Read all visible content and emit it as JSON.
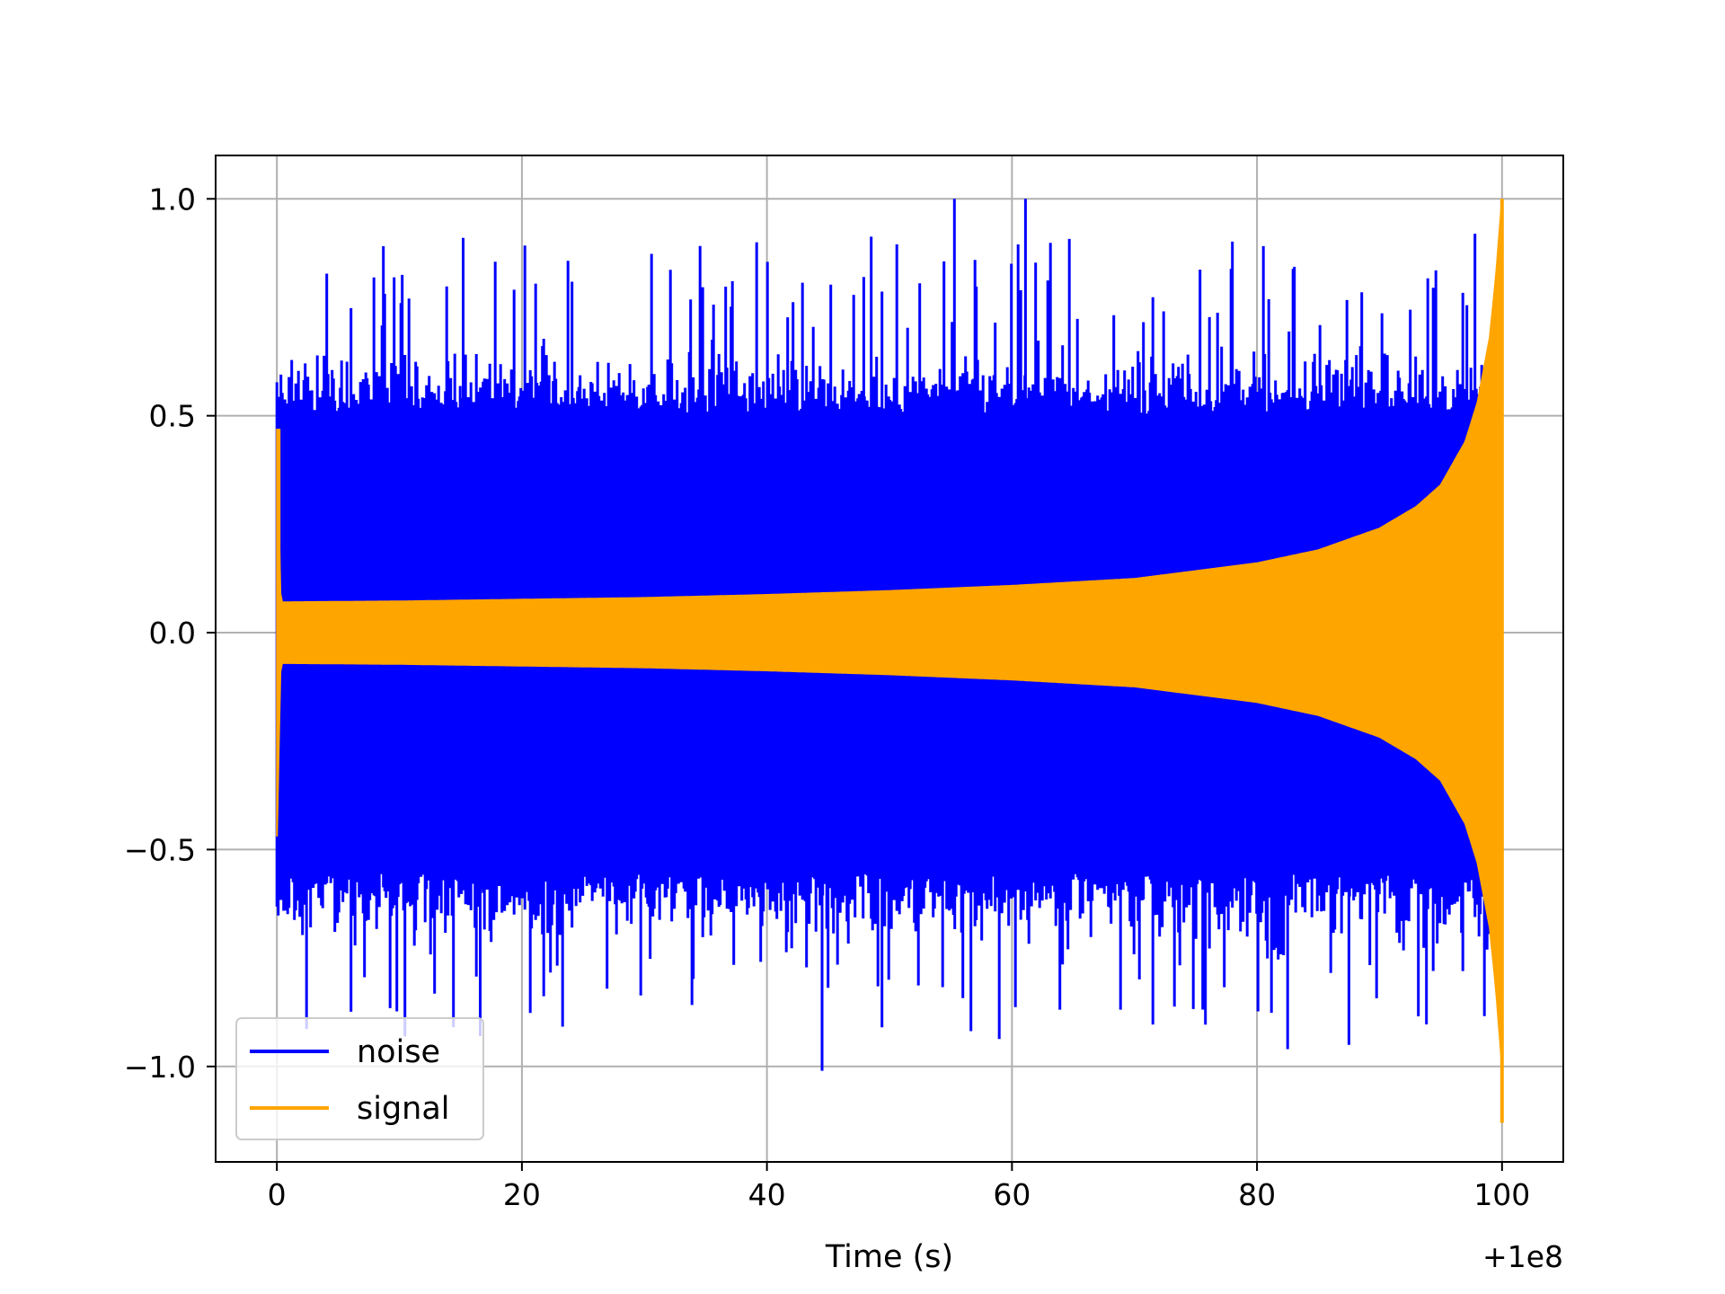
{
  "chart_data": {
    "type": "line",
    "title": "",
    "xlabel": "Time (s)",
    "ylabel": "",
    "x_offset_label": "+1e8",
    "xlim": [
      -5,
      105
    ],
    "ylim": [
      -1.22,
      1.1
    ],
    "x_ticks": [
      0,
      20,
      40,
      60,
      80,
      100
    ],
    "x_tick_labels": [
      "0",
      "20",
      "40",
      "60",
      "80",
      "100"
    ],
    "y_ticks": [
      1.0,
      0.5,
      0.0,
      -0.5,
      -1.0
    ],
    "y_tick_labels": [
      "1.0",
      "0.5",
      "0.0",
      "−0.5",
      "−1.0"
    ],
    "grid": true,
    "legend_position": "lower-left",
    "series": [
      {
        "name": "noise",
        "color": "#0000ff",
        "x_range": [
          0,
          100
        ],
        "description_values": {
          "peak_max": 1.0,
          "peak_min": -1.01,
          "typical_upper": [
            0.55,
            0.8
          ],
          "typical_lower": [
            -0.6,
            -0.85
          ]
        }
      },
      {
        "name": "signal",
        "color": "#ffa500",
        "x_range": [
          0,
          100
        ],
        "envelope": {
          "t": [
            0,
            0.3,
            10,
            20,
            30,
            40,
            50,
            60,
            70,
            80,
            85,
            90,
            93,
            95,
            97,
            98,
            99,
            99.5,
            100
          ],
          "amplitude": [
            0.47,
            0.07,
            0.072,
            0.076,
            0.08,
            0.087,
            0.096,
            0.108,
            0.124,
            0.16,
            0.19,
            0.24,
            0.29,
            0.34,
            0.44,
            0.53,
            0.68,
            0.82,
            1.0
          ],
          "final_min": -1.13
        }
      }
    ]
  },
  "legend": {
    "items": [
      {
        "label": "noise",
        "color": "#0000ff"
      },
      {
        "label": "signal",
        "color": "#ffa500"
      }
    ]
  }
}
